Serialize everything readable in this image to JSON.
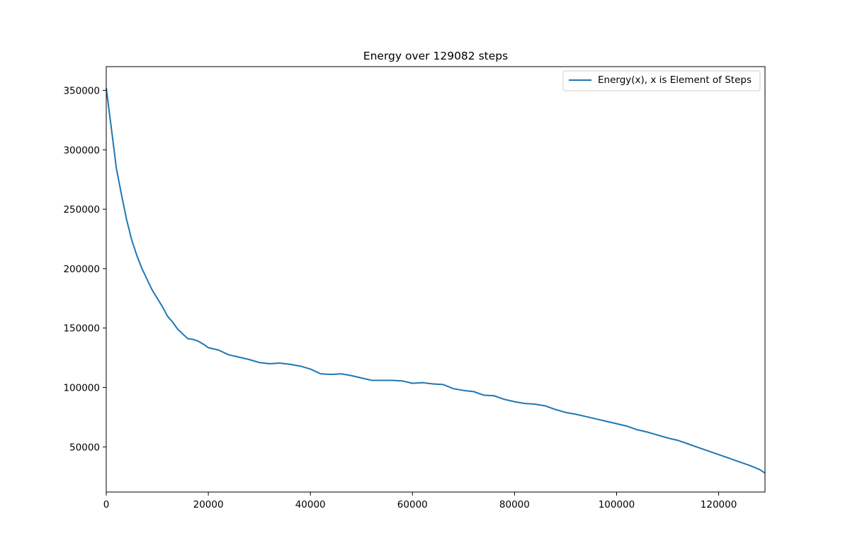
{
  "chart_data": {
    "type": "line",
    "title": "Energy over  129082 steps",
    "xlabel": "",
    "ylabel": "",
    "xlim": [
      0,
      129082
    ],
    "ylim": [
      12000,
      370000
    ],
    "x_ticks": [
      0,
      20000,
      40000,
      60000,
      80000,
      100000,
      120000
    ],
    "y_ticks": [
      50000,
      100000,
      150000,
      200000,
      250000,
      300000,
      350000
    ],
    "grid": false,
    "legend_position": "upper right",
    "series": [
      {
        "name": "Energy(x), x is Element of Steps",
        "color": "#1f77b4",
        "x": [
          0,
          1000,
          2000,
          3000,
          4000,
          5000,
          6000,
          7000,
          8000,
          9000,
          10000,
          11000,
          12000,
          13000,
          14000,
          15000,
          16000,
          17000,
          18000,
          19000,
          20000,
          22000,
          24000,
          26000,
          28000,
          30000,
          32000,
          34000,
          36000,
          38000,
          40000,
          42000,
          44000,
          46000,
          48000,
          50000,
          52000,
          54000,
          56000,
          58000,
          60000,
          62000,
          64000,
          66000,
          68000,
          70000,
          72000,
          74000,
          76000,
          78000,
          80000,
          82000,
          84000,
          86000,
          88000,
          90000,
          92000,
          94000,
          96000,
          98000,
          100000,
          102000,
          104000,
          106000,
          108000,
          110000,
          112000,
          114000,
          116000,
          118000,
          120000,
          122000,
          124000,
          126000,
          128000,
          129082
        ],
        "y": [
          352000,
          318000,
          284000,
          262000,
          241000,
          224000,
          211000,
          200000,
          191000,
          182000,
          175000,
          168000,
          160000,
          155000,
          149000,
          145000,
          141000,
          140500,
          139000,
          136500,
          133500,
          131500,
          127500,
          125500,
          123500,
          121000,
          120000,
          120500,
          119500,
          118000,
          115500,
          111500,
          111000,
          111500,
          110000,
          108000,
          106000,
          106000,
          106000,
          105500,
          103500,
          104000,
          103000,
          102500,
          99000,
          97500,
          96500,
          93500,
          93000,
          90000,
          88000,
          86500,
          86000,
          84500,
          81500,
          79000,
          77500,
          75500,
          73500,
          71500,
          69500,
          67500,
          64500,
          62500,
          60000,
          57500,
          55500,
          52500,
          49500,
          46500,
          43500,
          40500,
          37500,
          34500,
          31000,
          28000
        ]
      }
    ]
  }
}
